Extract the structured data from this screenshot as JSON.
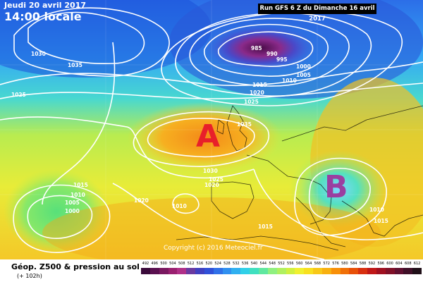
{
  "header": {
    "date": "Jeudi 20 avril 2017",
    "time": "14:00 locale",
    "run": "Run GFS 6 Z du Dimanche 16 avril 2017"
  },
  "map": {
    "copyright": "Copyright (c) 2016 Meteociel.fr",
    "high_label": "A",
    "low_label": "B",
    "high_color": "#e8202a",
    "low_color": "#9b3fa0",
    "isobars": [
      "1030",
      "1035",
      "1025",
      "985",
      "990",
      "995",
      "1000",
      "1005",
      "1010",
      "1015",
      "1020",
      "1025",
      "1035",
      "1030",
      "1025",
      "1020",
      "1015",
      "1010",
      "1005",
      "1000",
      "1020",
      "1010",
      "1015",
      "1010",
      "1015"
    ]
  },
  "legend": {
    "title": "Géop. Z500 & pression au sol",
    "subtitle": "(+ 102h)",
    "scale_labels": [
      "492",
      "496",
      "500",
      "504",
      "508",
      "512",
      "516",
      "520",
      "524",
      "528",
      "532",
      "536",
      "540",
      "544",
      "548",
      "552",
      "556",
      "560",
      "564",
      "568",
      "572",
      "576",
      "580",
      "584",
      "588",
      "592",
      "596",
      "600",
      "604",
      "608",
      "612"
    ],
    "scale_colors": [
      "#3a0a3a",
      "#5a1050",
      "#7a1860",
      "#9a2070",
      "#b03088",
      "#6a3aa0",
      "#4040c0",
      "#3050d8",
      "#3070e8",
      "#3090f0",
      "#30b0f0",
      "#30d0e8",
      "#40e0c0",
      "#60e8a0",
      "#90f080",
      "#b0f060",
      "#d0f040",
      "#f0f030",
      "#f8e020",
      "#f8c818",
      "#f8b010",
      "#f89008",
      "#f07008",
      "#e85008",
      "#d83010",
      "#c01818",
      "#a01020",
      "#801028",
      "#601030",
      "#401028",
      "#201018"
    ]
  }
}
